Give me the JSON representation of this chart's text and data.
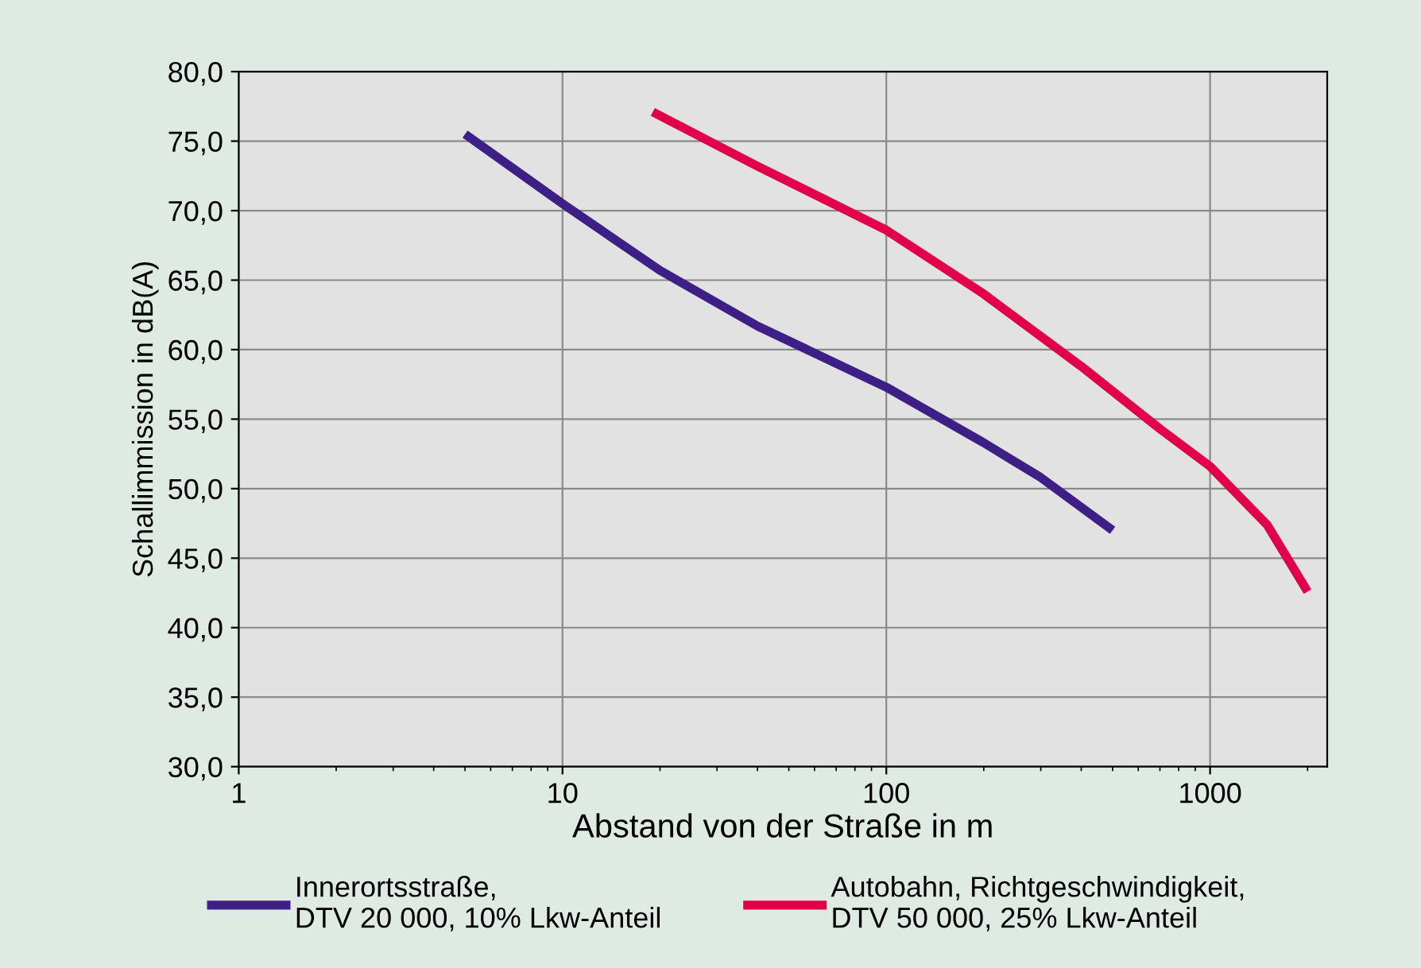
{
  "chart_data": {
    "type": "line",
    "xlabel": "Abstand von der Straße in m",
    "ylabel": "Schallimmission in dB(A)",
    "log": "x",
    "grid": true,
    "legend": "bottom",
    "line_style": "solid",
    "marker": "none",
    "xlim": [
      1,
      2300
    ],
    "xticks": [
      1,
      10,
      100,
      1000
    ],
    "ylim": [
      30,
      80
    ],
    "yticks": [
      {
        "value": 30,
        "label": "30,0"
      },
      {
        "value": 35,
        "label": "35,0"
      },
      {
        "value": 40,
        "label": "40,0"
      },
      {
        "value": 45,
        "label": "45,0"
      },
      {
        "value": 50,
        "label": "50,0"
      },
      {
        "value": 55,
        "label": "55,0"
      },
      {
        "value": 60,
        "label": "60,0"
      },
      {
        "value": 65,
        "label": "65,0"
      },
      {
        "value": 70,
        "label": "70,0"
      },
      {
        "value": 75,
        "label": "75,0"
      },
      {
        "value": 80,
        "label": "80,0"
      }
    ],
    "series": [
      {
        "name": "Innerortsstraße,\nDTV 20 000, 10% Lkw-Anteil",
        "color": "#3d1f86",
        "x": [
          5,
          10,
          20,
          40,
          100,
          200,
          300,
          500
        ],
        "values": [
          75.5,
          70.5,
          65.7,
          61.7,
          57.3,
          53.3,
          50.8,
          47.0
        ]
      },
      {
        "name": "Autobahn, Richtgeschwindigkeit,\nDTV 50 000, 25% Lkw-Anteil",
        "color": "#e2004a",
        "x": [
          19,
          40,
          100,
          200,
          400,
          700,
          1000,
          1500,
          2000
        ],
        "values": [
          77.1,
          73.2,
          68.6,
          64.0,
          58.8,
          54.3,
          51.6,
          47.4,
          42.6
        ]
      }
    ]
  }
}
